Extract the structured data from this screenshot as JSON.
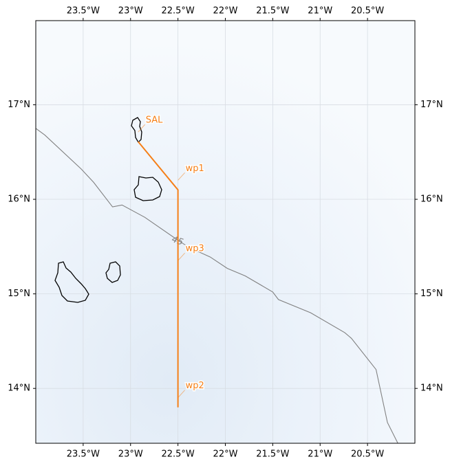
{
  "chart_data": {
    "type": "map",
    "xlim": [
      -24.0,
      -20.0
    ],
    "ylim": [
      13.42,
      17.89
    ],
    "xticks": [
      {
        "value": -23.5,
        "label": "23.5°W"
      },
      {
        "value": -23,
        "label": "23°W"
      },
      {
        "value": -22.5,
        "label": "22.5°W"
      },
      {
        "value": -22,
        "label": "22°W"
      },
      {
        "value": -21.5,
        "label": "21.5°W"
      },
      {
        "value": -21,
        "label": "21°W"
      },
      {
        "value": -20.5,
        "label": "20.5°W"
      }
    ],
    "yticks": [
      {
        "value": 14,
        "label": "14°N"
      },
      {
        "value": 15,
        "label": "15°N"
      },
      {
        "value": 16,
        "label": "16°N"
      },
      {
        "value": 17,
        "label": "17°N"
      }
    ],
    "grid": true,
    "route": {
      "color": "#f57f17",
      "labels": [
        "SAL",
        "wp1",
        "wp3",
        "wp2"
      ],
      "lon": [
        -22.92,
        -22.5,
        -22.5,
        -22.5
      ],
      "lat": [
        16.61,
        16.1,
        15.25,
        13.8
      ]
    },
    "contour": {
      "label": "45",
      "color": "#808080",
      "lon": [
        -24.0,
        -23.905,
        -23.52,
        -23.39,
        -23.19,
        -23.09,
        -22.85,
        -22.49,
        -22.38,
        -22.16,
        -21.98,
        -21.79,
        -21.5,
        -21.44,
        -21.1,
        -20.74,
        -20.67,
        -20.41,
        -20.29,
        -20.18
      ],
      "lat": [
        16.75,
        16.68,
        16.32,
        16.18,
        15.92,
        15.94,
        15.81,
        15.56,
        15.49,
        15.39,
        15.27,
        15.19,
        15.02,
        14.94,
        14.8,
        14.59,
        14.53,
        14.2,
        13.64,
        13.42
      ]
    }
  }
}
